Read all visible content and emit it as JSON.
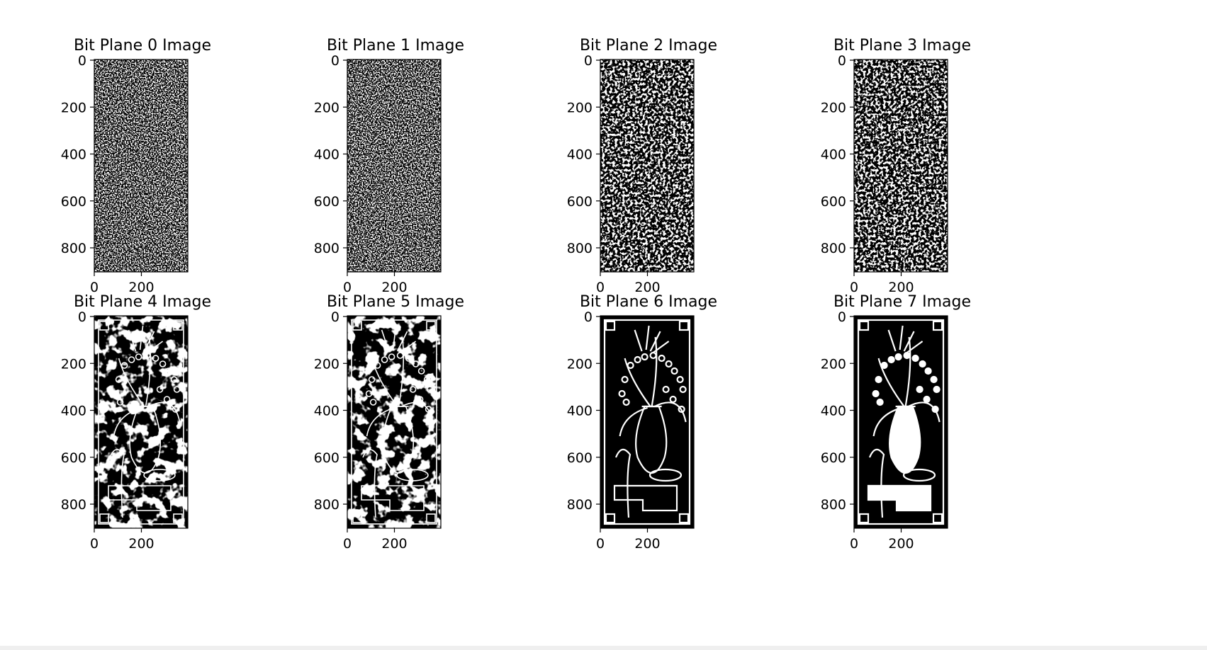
{
  "figure": {
    "panels": [
      {
        "title": "Bit Plane 0 Image",
        "plane": 0
      },
      {
        "title": "Bit Plane 1 Image",
        "plane": 1
      },
      {
        "title": "Bit Plane 2 Image",
        "plane": 2
      },
      {
        "title": "Bit Plane 3 Image",
        "plane": 3
      },
      {
        "title": "Bit Plane 4 Image",
        "plane": 4
      },
      {
        "title": "Bit Plane 5 Image",
        "plane": 5
      },
      {
        "title": "Bit Plane 6 Image",
        "plane": 6
      },
      {
        "title": "Bit Plane 7 Image",
        "plane": 7
      }
    ],
    "y_ticks": [
      "0",
      "200",
      "400",
      "600",
      "800"
    ],
    "x_ticks": [
      "0",
      "200"
    ]
  },
  "colors": {
    "background": "#ffffff",
    "ink": "#000000",
    "foreground": "#ffffff",
    "strip": "#efefef"
  }
}
